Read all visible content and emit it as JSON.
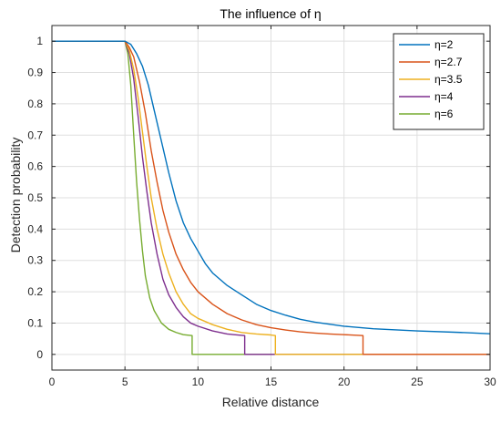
{
  "chart_data": {
    "type": "line",
    "title": "The influence of η",
    "xlabel": "Relative distance",
    "ylabel": "Detection probability",
    "xlim": [
      0,
      30
    ],
    "ylim": [
      -0.05,
      1.05
    ],
    "xticks": [
      0,
      5,
      10,
      15,
      20,
      25,
      30
    ],
    "yticks": [
      0,
      0.1,
      0.2,
      0.3,
      0.4,
      0.5,
      0.6,
      0.7,
      0.8,
      0.9,
      1
    ],
    "grid": true,
    "legend_position": "top-right",
    "series": [
      {
        "name": "η=2",
        "color": "#0072BD",
        "x": [
          0,
          5,
          5.4,
          5.8,
          6.2,
          6.6,
          7.0,
          7.5,
          8.0,
          8.5,
          9.0,
          9.5,
          10.0,
          10.5,
          11.0,
          12.0,
          13.0,
          14.0,
          15.0,
          16.0,
          17.0,
          18.0,
          20.0,
          22.0,
          25.0,
          28.0,
          30.0
        ],
        "y": [
          1,
          1,
          0.99,
          0.96,
          0.92,
          0.86,
          0.78,
          0.68,
          0.58,
          0.49,
          0.42,
          0.37,
          0.33,
          0.29,
          0.26,
          0.22,
          0.19,
          0.16,
          0.14,
          0.125,
          0.112,
          0.103,
          0.09,
          0.082,
          0.075,
          0.07,
          0.066
        ]
      },
      {
        "name": "η=2.7",
        "color": "#D95319",
        "x": [
          0,
          5,
          5.3,
          5.6,
          6.0,
          6.4,
          6.8,
          7.2,
          7.6,
          8.0,
          8.5,
          9.0,
          9.5,
          10.0,
          11.0,
          12.0,
          13.0,
          14.0,
          15.0,
          16.0,
          17.0,
          18.0,
          19.0,
          20.0,
          21.3,
          21.3,
          30.0
        ],
        "y": [
          1,
          1,
          0.98,
          0.95,
          0.87,
          0.77,
          0.65,
          0.55,
          0.46,
          0.39,
          0.32,
          0.27,
          0.23,
          0.2,
          0.16,
          0.13,
          0.11,
          0.095,
          0.085,
          0.078,
          0.072,
          0.068,
          0.065,
          0.063,
          0.06,
          0,
          0
        ]
      },
      {
        "name": "η=3.5",
        "color": "#EDB120",
        "x": [
          0,
          5,
          5.3,
          5.6,
          5.9,
          6.2,
          6.5,
          6.8,
          7.2,
          7.6,
          8.0,
          8.5,
          9.0,
          9.5,
          10.0,
          11.0,
          12.0,
          13.0,
          14.0,
          15.0,
          15.3,
          15.3,
          30.0
        ],
        "y": [
          1,
          1,
          0.97,
          0.91,
          0.82,
          0.71,
          0.6,
          0.5,
          0.4,
          0.32,
          0.26,
          0.2,
          0.16,
          0.13,
          0.115,
          0.095,
          0.08,
          0.07,
          0.065,
          0.062,
          0.06,
          0,
          0
        ]
      },
      {
        "name": "η=4",
        "color": "#7E2F8E",
        "x": [
          0,
          5,
          5.3,
          5.6,
          5.9,
          6.2,
          6.5,
          6.8,
          7.2,
          7.6,
          8.0,
          8.5,
          9.0,
          9.5,
          10.0,
          11.0,
          12.0,
          13.2,
          13.2,
          30.0
        ],
        "y": [
          1,
          1,
          0.96,
          0.88,
          0.76,
          0.63,
          0.52,
          0.42,
          0.32,
          0.24,
          0.19,
          0.15,
          0.12,
          0.1,
          0.09,
          0.075,
          0.065,
          0.06,
          0,
          0
        ]
      },
      {
        "name": "η=6",
        "color": "#77AC30",
        "x": [
          0,
          5,
          5.2,
          5.4,
          5.6,
          5.8,
          6.0,
          6.2,
          6.4,
          6.7,
          7.0,
          7.5,
          8.0,
          8.5,
          9.0,
          9.6,
          9.6,
          30.0
        ],
        "y": [
          1,
          1,
          0.96,
          0.86,
          0.7,
          0.55,
          0.43,
          0.33,
          0.25,
          0.18,
          0.14,
          0.1,
          0.08,
          0.07,
          0.063,
          0.06,
          0,
          0
        ]
      }
    ]
  }
}
